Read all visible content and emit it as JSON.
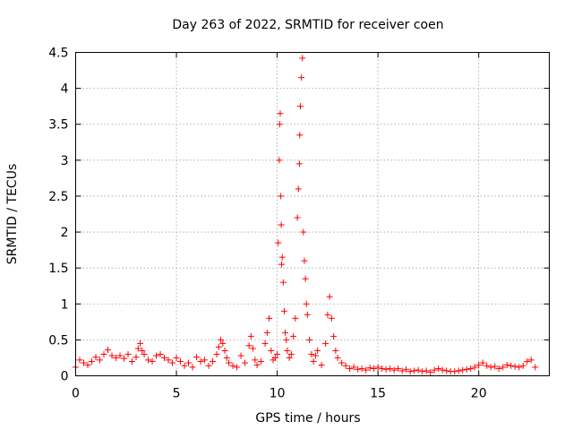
{
  "chart_data": {
    "type": "scatter",
    "title": "Day 263 of 2022, SRMTID for receiver coen",
    "xlabel": "GPS time / hours",
    "ylabel": "SRMTID / TECUs",
    "xlim": [
      0,
      23.5
    ],
    "ylim": [
      0,
      4.5
    ],
    "xticks": [
      0,
      5,
      10,
      15,
      20
    ],
    "yticks": [
      0,
      0.5,
      1,
      1.5,
      2,
      2.5,
      3,
      3.5,
      4,
      4.5
    ],
    "grid": true,
    "marker": "plus",
    "color": "#ff0000",
    "series": [
      {
        "name": "SRMTID",
        "x": [
          0.0,
          0.2,
          0.4,
          0.6,
          0.8,
          1.0,
          1.2,
          1.4,
          1.6,
          1.8,
          2.0,
          2.2,
          2.4,
          2.6,
          2.8,
          3.0,
          3.1,
          3.2,
          3.3,
          3.4,
          3.6,
          3.8,
          4.0,
          4.2,
          4.4,
          4.6,
          4.8,
          5.0,
          5.2,
          5.4,
          5.6,
          5.8,
          6.0,
          6.2,
          6.4,
          6.6,
          6.8,
          7.0,
          7.1,
          7.2,
          7.3,
          7.4,
          7.5,
          7.6,
          7.8,
          8.0,
          8.2,
          8.4,
          8.6,
          8.7,
          8.8,
          8.9,
          9.0,
          9.2,
          9.4,
          9.5,
          9.6,
          9.7,
          9.8,
          9.9,
          10.0,
          10.05,
          10.1,
          10.12,
          10.15,
          10.18,
          10.2,
          10.22,
          10.25,
          10.3,
          10.35,
          10.4,
          10.45,
          10.5,
          10.6,
          10.7,
          10.8,
          10.9,
          11.0,
          11.05,
          11.1,
          11.12,
          11.15,
          11.2,
          11.25,
          11.3,
          11.35,
          11.4,
          11.45,
          11.5,
          11.6,
          11.7,
          11.8,
          11.9,
          12.0,
          12.2,
          12.4,
          12.5,
          12.6,
          12.7,
          12.8,
          12.9,
          13.0,
          13.2,
          13.4,
          13.6,
          13.8,
          14.0,
          14.2,
          14.4,
          14.6,
          14.8,
          15.0,
          15.2,
          15.4,
          15.6,
          15.8,
          16.0,
          16.2,
          16.4,
          16.6,
          16.8,
          17.0,
          17.2,
          17.4,
          17.6,
          17.8,
          18.0,
          18.2,
          18.4,
          18.6,
          18.8,
          19.0,
          19.2,
          19.4,
          19.6,
          19.8,
          20.0,
          20.2,
          20.4,
          20.6,
          20.8,
          21.0,
          21.2,
          21.4,
          21.6,
          21.8,
          22.0,
          22.2,
          22.4,
          22.6,
          22.8
        ],
        "y": [
          0.12,
          0.22,
          0.18,
          0.15,
          0.2,
          0.26,
          0.22,
          0.3,
          0.36,
          0.28,
          0.25,
          0.28,
          0.24,
          0.3,
          0.2,
          0.26,
          0.38,
          0.45,
          0.35,
          0.3,
          0.22,
          0.2,
          0.28,
          0.3,
          0.25,
          0.22,
          0.18,
          0.25,
          0.2,
          0.14,
          0.18,
          0.12,
          0.26,
          0.2,
          0.22,
          0.14,
          0.2,
          0.3,
          0.4,
          0.5,
          0.45,
          0.35,
          0.25,
          0.18,
          0.14,
          0.12,
          0.28,
          0.18,
          0.42,
          0.55,
          0.38,
          0.22,
          0.15,
          0.2,
          0.45,
          0.6,
          0.8,
          0.35,
          0.22,
          0.25,
          0.3,
          1.85,
          3.0,
          3.5,
          3.65,
          2.5,
          2.1,
          1.55,
          1.65,
          1.3,
          0.9,
          0.6,
          0.5,
          0.35,
          0.25,
          0.3,
          0.55,
          0.8,
          2.2,
          2.6,
          2.95,
          3.35,
          3.75,
          4.15,
          4.42,
          2.0,
          1.6,
          1.35,
          1.0,
          0.85,
          0.5,
          0.3,
          0.2,
          0.28,
          0.35,
          0.15,
          0.45,
          0.85,
          1.1,
          0.8,
          0.55,
          0.35,
          0.25,
          0.18,
          0.14,
          0.1,
          0.12,
          0.09,
          0.1,
          0.08,
          0.11,
          0.1,
          0.12,
          0.1,
          0.09,
          0.1,
          0.08,
          0.1,
          0.07,
          0.09,
          0.06,
          0.07,
          0.08,
          0.06,
          0.07,
          0.05,
          0.08,
          0.1,
          0.08,
          0.07,
          0.06,
          0.06,
          0.07,
          0.08,
          0.09,
          0.1,
          0.12,
          0.15,
          0.18,
          0.14,
          0.12,
          0.13,
          0.1,
          0.12,
          0.15,
          0.14,
          0.13,
          0.12,
          0.14,
          0.2,
          0.22,
          0.12
        ]
      }
    ]
  }
}
